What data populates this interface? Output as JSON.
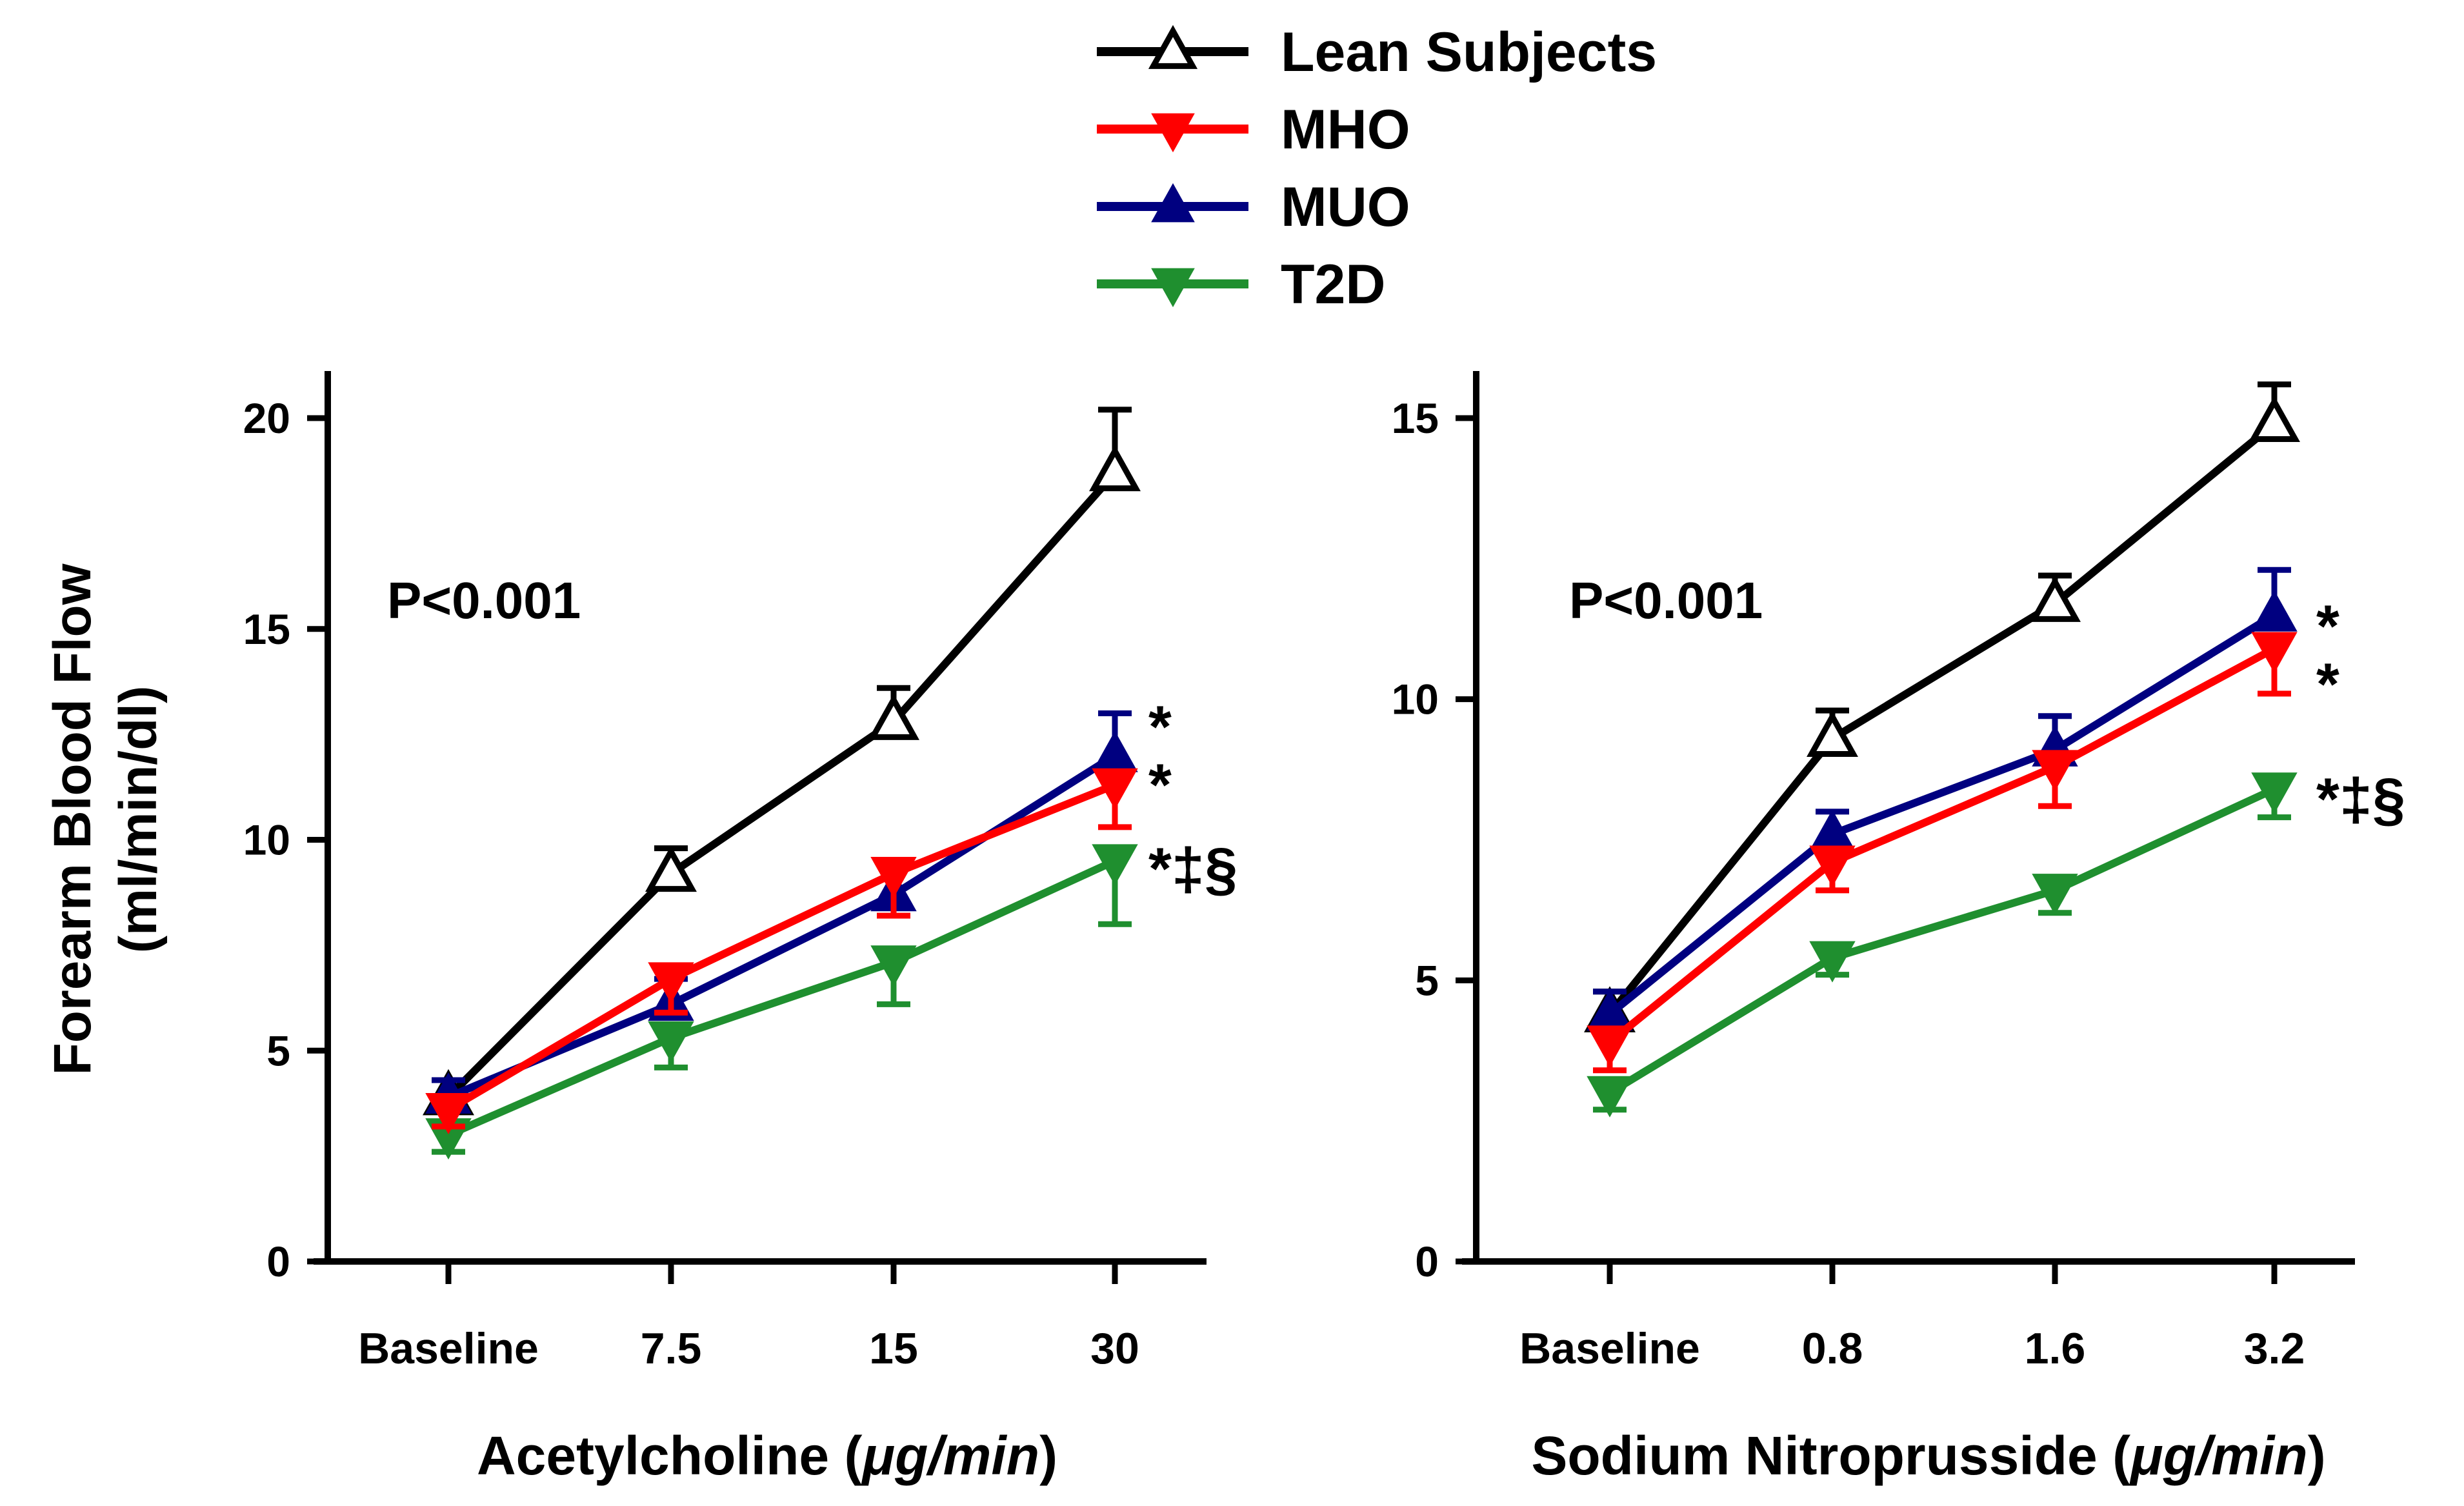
{
  "legend": [
    {
      "name": "Lean Subjects",
      "color": "#000000",
      "marker": "triangle-up-open"
    },
    {
      "name": "MHO",
      "color": "#ff0000",
      "marker": "triangle-down-filled"
    },
    {
      "name": "MUO",
      "color": "#000080",
      "marker": "triangle-up-filled"
    },
    {
      "name": "T2D",
      "color": "#1f8f2f",
      "marker": "triangle-down-filled"
    }
  ],
  "shared": {
    "ylabel_line1": "Forearm Blood Flow",
    "ylabel_line2": "(ml/min/dl)"
  },
  "chart_data": [
    {
      "type": "line",
      "xlabel_prefix": "Acetylcholine (",
      "xlabel_unit": "μg/min",
      "xlabel_suffix": ")",
      "categories": [
        "Baseline",
        "7.5",
        "15",
        "30"
      ],
      "ylim": [
        0,
        20
      ],
      "yticks": [
        "0",
        "5",
        "10",
        "15",
        "20"
      ],
      "annotation": "P<0.001",
      "series": [
        {
          "name": "Lean Subjects",
          "values": [
            3.9,
            9.2,
            12.8,
            18.7
          ],
          "errors": [
            0.4,
            0.6,
            0.8,
            1.5
          ],
          "sig": ""
        },
        {
          "name": "MHO",
          "values": [
            3.6,
            6.7,
            9.2,
            11.3
          ],
          "errors": [
            0.4,
            0.8,
            1.0,
            1.0
          ],
          "sig": "*"
        },
        {
          "name": "MUO",
          "values": [
            3.9,
            6.1,
            8.7,
            12.0
          ],
          "errors": [
            0.4,
            0.6,
            0.8,
            1.0
          ],
          "sig": "*"
        },
        {
          "name": "T2D",
          "values": [
            3.0,
            5.3,
            7.1,
            9.5
          ],
          "errors": [
            0.4,
            0.7,
            1.0,
            1.5
          ],
          "sig": "*‡§"
        }
      ]
    },
    {
      "type": "line",
      "xlabel_prefix": "Sodium Nitroprusside (",
      "xlabel_unit": "μg/min",
      "xlabel_suffix": ")",
      "categories": [
        "Baseline",
        "0.8",
        "1.6",
        "3.2"
      ],
      "ylim": [
        0,
        15
      ],
      "yticks": [
        "0",
        "5",
        "10",
        "15"
      ],
      "annotation": "P<0.001",
      "series": [
        {
          "name": "Lean Subjects",
          "values": [
            4.4,
            9.3,
            11.7,
            14.9
          ],
          "errors": [
            0.4,
            0.5,
            0.5,
            0.7
          ],
          "sig": ""
        },
        {
          "name": "MHO",
          "values": [
            3.9,
            7.1,
            8.8,
            10.9
          ],
          "errors": [
            0.5,
            0.5,
            0.7,
            0.8
          ],
          "sig": "*"
        },
        {
          "name": "MUO",
          "values": [
            4.4,
            7.6,
            9.1,
            11.5
          ],
          "errors": [
            0.4,
            0.4,
            0.6,
            0.8
          ],
          "sig": "*"
        },
        {
          "name": "T2D",
          "values": [
            3.0,
            5.4,
            6.6,
            8.4
          ],
          "errors": [
            0.3,
            0.3,
            0.4,
            0.5
          ],
          "sig": "*‡§"
        }
      ]
    }
  ]
}
